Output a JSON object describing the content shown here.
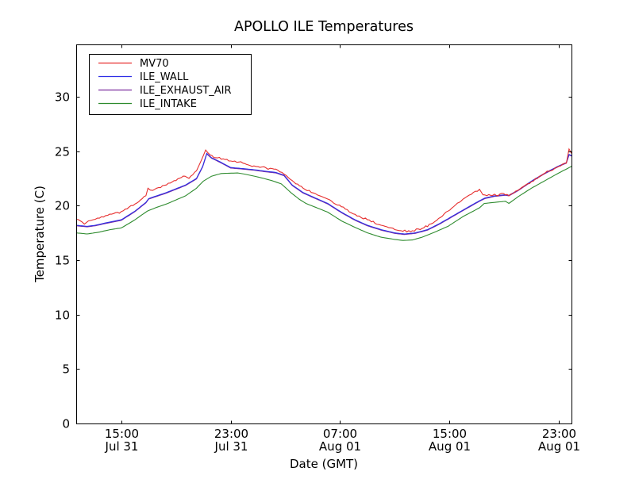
{
  "chart_data": {
    "type": "line",
    "title": "APOLLO ILE Temperatures",
    "xlabel": "Date (GMT)",
    "ylabel": "Temperature (C)",
    "x_unit": "hours_since_Jul31_0000_GMT",
    "xlim": [
      11.7,
      47.93
    ],
    "ylim": [
      0,
      34.8
    ],
    "grid": false,
    "legend_position": "upper-left",
    "background_color": "#ffffff",
    "axis_color": "#000000",
    "y_ticks": [
      0,
      5,
      10,
      15,
      20,
      25,
      30
    ],
    "x_ticks": [
      {
        "t": 15,
        "time": "15:00",
        "date": "Jul 31"
      },
      {
        "t": 23,
        "time": "23:00",
        "date": "Jul 31"
      },
      {
        "t": 31,
        "time": "07:00",
        "date": "Aug 01"
      },
      {
        "t": 39,
        "time": "15:00",
        "date": "Aug 01"
      },
      {
        "t": 47,
        "time": "23:00",
        "date": "Aug 01"
      }
    ],
    "series": [
      {
        "name": "MV70",
        "color": "#e62e2e",
        "noise_c": 0.12,
        "points": [
          [
            11.7,
            18.75
          ],
          [
            12.0,
            18.6
          ],
          [
            12.3,
            18.3
          ],
          [
            12.6,
            18.6
          ],
          [
            13.1,
            18.75
          ],
          [
            14.0,
            19.1
          ],
          [
            15.0,
            19.45
          ],
          [
            16.0,
            20.15
          ],
          [
            16.8,
            20.9
          ],
          [
            16.95,
            21.6
          ],
          [
            17.3,
            21.4
          ],
          [
            18.3,
            21.9
          ],
          [
            19.0,
            22.3
          ],
          [
            19.66,
            22.7
          ],
          [
            19.95,
            22.5
          ],
          [
            20.5,
            23.2
          ],
          [
            20.9,
            24.3
          ],
          [
            21.17,
            25.1
          ],
          [
            21.5,
            24.65
          ],
          [
            21.9,
            24.4
          ],
          [
            23.0,
            24.1
          ],
          [
            23.9,
            23.9
          ],
          [
            24.7,
            23.65
          ],
          [
            25.6,
            23.45
          ],
          [
            26.3,
            23.35
          ],
          [
            26.9,
            22.9
          ],
          [
            27.5,
            22.3
          ],
          [
            28.3,
            21.6
          ],
          [
            29.2,
            21.1
          ],
          [
            30.1,
            20.6
          ],
          [
            31.1,
            19.9
          ],
          [
            32.1,
            19.2
          ],
          [
            33.0,
            18.7
          ],
          [
            34.0,
            18.2
          ],
          [
            35.0,
            17.8
          ],
          [
            35.6,
            17.65
          ],
          [
            36.3,
            17.7
          ],
          [
            37.0,
            17.9
          ],
          [
            37.8,
            18.4
          ],
          [
            38.9,
            19.5
          ],
          [
            40.0,
            20.6
          ],
          [
            41.2,
            21.5
          ],
          [
            41.45,
            21.0
          ],
          [
            42.3,
            21.05
          ],
          [
            43.1,
            21.0
          ],
          [
            43.35,
            20.9
          ],
          [
            44.0,
            21.4
          ],
          [
            45.0,
            22.2
          ],
          [
            46.0,
            23.0
          ],
          [
            47.0,
            23.6
          ],
          [
            47.55,
            23.9
          ],
          [
            47.75,
            25.2
          ],
          [
            47.93,
            24.8
          ]
        ]
      },
      {
        "name": "ILE_WALL",
        "color": "#2e2ee6",
        "noise_c": 0,
        "points": [
          [
            11.7,
            18.2
          ],
          [
            12.5,
            18.1
          ],
          [
            13.1,
            18.2
          ],
          [
            14.0,
            18.45
          ],
          [
            15.0,
            18.7
          ],
          [
            16.0,
            19.5
          ],
          [
            16.8,
            20.3
          ],
          [
            17.0,
            20.65
          ],
          [
            18.3,
            21.2
          ],
          [
            19.0,
            21.55
          ],
          [
            19.7,
            21.9
          ],
          [
            20.5,
            22.5
          ],
          [
            20.95,
            23.6
          ],
          [
            21.25,
            24.8
          ],
          [
            21.6,
            24.4
          ],
          [
            22.1,
            24.1
          ],
          [
            23.0,
            23.5
          ],
          [
            23.9,
            23.4
          ],
          [
            24.7,
            23.3
          ],
          [
            25.6,
            23.15
          ],
          [
            26.3,
            23.05
          ],
          [
            26.9,
            22.8
          ],
          [
            27.5,
            21.9
          ],
          [
            28.3,
            21.2
          ],
          [
            29.2,
            20.7
          ],
          [
            30.1,
            20.2
          ],
          [
            31.1,
            19.4
          ],
          [
            32.1,
            18.7
          ],
          [
            33.0,
            18.2
          ],
          [
            34.0,
            17.8
          ],
          [
            35.0,
            17.5
          ],
          [
            35.7,
            17.4
          ],
          [
            36.5,
            17.5
          ],
          [
            37.4,
            17.8
          ],
          [
            38.2,
            18.3
          ],
          [
            38.9,
            18.8
          ],
          [
            40.0,
            19.6
          ],
          [
            41.2,
            20.45
          ],
          [
            41.6,
            20.7
          ],
          [
            42.3,
            20.9
          ],
          [
            43.1,
            21.0
          ],
          [
            43.35,
            20.95
          ],
          [
            44.0,
            21.4
          ],
          [
            45.0,
            22.25
          ],
          [
            46.0,
            23.0
          ],
          [
            47.0,
            23.65
          ],
          [
            47.55,
            23.95
          ],
          [
            47.75,
            24.7
          ],
          [
            47.93,
            24.6
          ]
        ]
      },
      {
        "name": "ILE_EXHAUST_AIR",
        "color": "#7d2e9e",
        "noise_c": 0,
        "points": [
          [
            11.7,
            18.15
          ],
          [
            12.5,
            18.05
          ],
          [
            13.1,
            18.15
          ],
          [
            14.0,
            18.4
          ],
          [
            15.0,
            18.65
          ],
          [
            16.0,
            19.45
          ],
          [
            16.8,
            20.25
          ],
          [
            17.0,
            20.6
          ],
          [
            18.3,
            21.15
          ],
          [
            19.0,
            21.5
          ],
          [
            19.7,
            21.85
          ],
          [
            20.5,
            22.45
          ],
          [
            20.95,
            23.55
          ],
          [
            21.25,
            24.75
          ],
          [
            21.6,
            24.35
          ],
          [
            22.1,
            24.05
          ],
          [
            23.0,
            23.45
          ],
          [
            23.9,
            23.35
          ],
          [
            24.7,
            23.25
          ],
          [
            25.6,
            23.1
          ],
          [
            26.3,
            23.0
          ],
          [
            26.9,
            22.75
          ],
          [
            27.5,
            21.85
          ],
          [
            28.3,
            21.15
          ],
          [
            29.2,
            20.65
          ],
          [
            30.1,
            20.15
          ],
          [
            31.1,
            19.35
          ],
          [
            32.1,
            18.65
          ],
          [
            33.0,
            18.15
          ],
          [
            34.0,
            17.75
          ],
          [
            35.0,
            17.45
          ],
          [
            35.7,
            17.35
          ],
          [
            36.5,
            17.45
          ],
          [
            37.4,
            17.75
          ],
          [
            38.2,
            18.25
          ],
          [
            38.9,
            18.75
          ],
          [
            40.0,
            19.55
          ],
          [
            41.2,
            20.4
          ],
          [
            41.6,
            20.65
          ],
          [
            42.3,
            20.85
          ],
          [
            43.1,
            20.95
          ],
          [
            43.35,
            20.9
          ],
          [
            44.0,
            21.35
          ],
          [
            45.0,
            22.2
          ],
          [
            46.0,
            22.95
          ],
          [
            47.0,
            23.6
          ],
          [
            47.55,
            23.9
          ],
          [
            47.75,
            24.65
          ],
          [
            47.93,
            24.55
          ]
        ]
      },
      {
        "name": "ILE_INTAKE",
        "color": "#2e8b2e",
        "noise_c": 0,
        "points": [
          [
            11.7,
            17.5
          ],
          [
            12.5,
            17.4
          ],
          [
            13.3,
            17.55
          ],
          [
            14.2,
            17.8
          ],
          [
            15.0,
            17.95
          ],
          [
            16.0,
            18.7
          ],
          [
            16.9,
            19.5
          ],
          [
            17.5,
            19.8
          ],
          [
            18.3,
            20.15
          ],
          [
            19.7,
            20.9
          ],
          [
            20.5,
            21.6
          ],
          [
            21.0,
            22.25
          ],
          [
            21.6,
            22.7
          ],
          [
            22.3,
            22.95
          ],
          [
            23.5,
            23.0
          ],
          [
            24.0,
            22.9
          ],
          [
            25.1,
            22.6
          ],
          [
            26.0,
            22.3
          ],
          [
            26.7,
            22.0
          ],
          [
            27.4,
            21.2
          ],
          [
            28.0,
            20.6
          ],
          [
            28.5,
            20.2
          ],
          [
            29.2,
            19.85
          ],
          [
            30.1,
            19.4
          ],
          [
            31.1,
            18.6
          ],
          [
            32.1,
            18.0
          ],
          [
            33.0,
            17.5
          ],
          [
            34.0,
            17.1
          ],
          [
            35.0,
            16.9
          ],
          [
            35.6,
            16.8
          ],
          [
            36.3,
            16.85
          ],
          [
            37.0,
            17.1
          ],
          [
            37.8,
            17.5
          ],
          [
            38.9,
            18.1
          ],
          [
            40.0,
            19.0
          ],
          [
            41.2,
            19.8
          ],
          [
            41.55,
            20.2
          ],
          [
            42.3,
            20.3
          ],
          [
            43.1,
            20.4
          ],
          [
            43.35,
            20.2
          ],
          [
            44.0,
            20.8
          ],
          [
            45.0,
            21.6
          ],
          [
            46.0,
            22.3
          ],
          [
            47.0,
            23.0
          ],
          [
            47.93,
            23.6
          ]
        ]
      }
    ]
  }
}
